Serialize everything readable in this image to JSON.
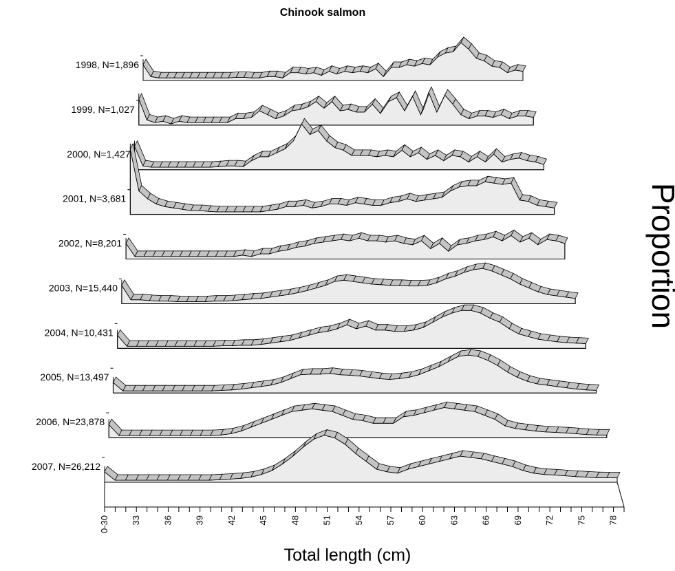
{
  "chart_data": {
    "type": "area",
    "title": "Chinook salmon",
    "xlabel": "Total length (cm)",
    "ylabel": "Proportion",
    "x_tick_labels": [
      "0-30",
      "33",
      "36",
      "39",
      "42",
      "45",
      "48",
      "51",
      "54",
      "57",
      "60",
      "63",
      "66",
      "69",
      "72",
      "75",
      "78"
    ],
    "x_bins": [
      "0-30",
      "31",
      "32",
      "33",
      "34",
      "35",
      "36",
      "37",
      "38",
      "39",
      "40",
      "41",
      "42",
      "43",
      "44",
      "45",
      "46",
      "47",
      "48",
      "49",
      "50",
      "51",
      "52",
      "53",
      "54",
      "55",
      "56",
      "57",
      "58",
      "59",
      "60",
      "61",
      "62",
      "63",
      "64",
      "65",
      "66",
      "67",
      "68",
      "69",
      "70",
      "71",
      "72",
      "73",
      "74",
      "75",
      "76",
      "77",
      "78",
      "79"
    ],
    "series": [
      {
        "name": "1998, N=1,896",
        "values": [
          0.6,
          0.15,
          0.1,
          0.1,
          0.1,
          0.1,
          0.1,
          0.1,
          0.1,
          0.1,
          0.1,
          0.1,
          0.12,
          0.12,
          0.1,
          0.1,
          0.15,
          0.15,
          0.1,
          0.3,
          0.3,
          0.25,
          0.3,
          0.2,
          0.35,
          0.25,
          0.35,
          0.3,
          0.35,
          0.3,
          0.45,
          0.15,
          0.5,
          0.5,
          0.6,
          0.55,
          0.65,
          0.6,
          0.9,
          1.05,
          1.1,
          1.45,
          1.2,
          0.85,
          0.75,
          0.55,
          0.5,
          0.3,
          0.4,
          0.35
        ]
      },
      {
        "name": "1999, N=1,027",
        "values": [
          1.0,
          0.2,
          0.1,
          0.15,
          0.05,
          0.15,
          0.1,
          0.1,
          0.1,
          0.1,
          0.1,
          0.1,
          0.25,
          0.25,
          0.3,
          0.55,
          0.4,
          0.25,
          0.35,
          0.55,
          0.6,
          0.7,
          0.9,
          0.65,
          0.9,
          0.55,
          0.6,
          0.5,
          0.5,
          0.8,
          0.45,
          0.9,
          1.05,
          0.55,
          1.1,
          0.4,
          1.25,
          0.5,
          1.15,
          0.8,
          0.4,
          0.25,
          0.35,
          0.35,
          0.3,
          0.4,
          0.25,
          0.35,
          0.35,
          0.3
        ]
      },
      {
        "name": "2000, N=1,427",
        "values": [
          0.9,
          0.15,
          0.1,
          0.1,
          0.1,
          0.1,
          0.1,
          0.1,
          0.1,
          0.1,
          0.12,
          0.15,
          0.15,
          0.12,
          0.35,
          0.5,
          0.5,
          0.65,
          0.8,
          1.1,
          1.75,
          1.35,
          1.5,
          1.1,
          0.85,
          0.75,
          0.55,
          0.55,
          0.55,
          0.5,
          0.55,
          0.5,
          0.75,
          0.5,
          0.65,
          0.4,
          0.55,
          0.35,
          0.55,
          0.5,
          0.3,
          0.5,
          0.3,
          0.6,
          0.3,
          0.4,
          0.45,
          0.35,
          0.3,
          0.2
        ]
      },
      {
        "name": "2001, N=3,681",
        "values": [
          2.5,
          0.9,
          0.6,
          0.4,
          0.3,
          0.25,
          0.2,
          0.15,
          0.15,
          0.12,
          0.1,
          0.1,
          0.1,
          0.1,
          0.1,
          0.1,
          0.15,
          0.2,
          0.3,
          0.3,
          0.35,
          0.25,
          0.3,
          0.4,
          0.4,
          0.35,
          0.45,
          0.4,
          0.35,
          0.35,
          0.45,
          0.5,
          0.6,
          0.5,
          0.55,
          0.6,
          0.65,
          0.9,
          1.05,
          1.1,
          1.1,
          1.25,
          1.2,
          1.15,
          1.2,
          0.55,
          0.5,
          0.35,
          0.3,
          0.25
        ]
      },
      {
        "name": "2002, N=8,201",
        "values": [
          0.6,
          0.1,
          0.1,
          0.1,
          0.1,
          0.1,
          0.1,
          0.1,
          0.1,
          0.1,
          0.1,
          0.1,
          0.1,
          0.15,
          0.1,
          0.2,
          0.2,
          0.3,
          0.35,
          0.45,
          0.5,
          0.6,
          0.65,
          0.7,
          0.75,
          0.7,
          0.8,
          0.7,
          0.7,
          0.65,
          0.7,
          0.6,
          0.55,
          0.7,
          0.4,
          0.6,
          0.3,
          0.55,
          0.6,
          0.7,
          0.75,
          0.85,
          0.7,
          0.9,
          0.65,
          0.8,
          0.55,
          0.75,
          0.7,
          0.6
        ]
      },
      {
        "name": "2003, N=15,440",
        "values": [
          0.7,
          0.15,
          0.15,
          0.12,
          0.1,
          0.1,
          0.08,
          0.08,
          0.08,
          0.08,
          0.1,
          0.1,
          0.12,
          0.15,
          0.18,
          0.2,
          0.25,
          0.3,
          0.35,
          0.42,
          0.5,
          0.6,
          0.7,
          0.85,
          0.9,
          0.85,
          0.8,
          0.75,
          0.73,
          0.7,
          0.7,
          0.68,
          0.68,
          0.7,
          0.8,
          0.95,
          1.05,
          1.2,
          1.3,
          1.35,
          1.25,
          1.1,
          0.95,
          0.75,
          0.6,
          0.45,
          0.35,
          0.3,
          0.25,
          0.2
        ]
      },
      {
        "name": "2004, N=10,431",
        "values": [
          0.5,
          0.08,
          0.08,
          0.08,
          0.08,
          0.08,
          0.08,
          0.08,
          0.08,
          0.08,
          0.08,
          0.1,
          0.1,
          0.12,
          0.12,
          0.15,
          0.2,
          0.25,
          0.3,
          0.4,
          0.5,
          0.6,
          0.65,
          0.75,
          0.9,
          0.75,
          0.85,
          0.7,
          0.7,
          0.65,
          0.65,
          0.7,
          0.8,
          1.0,
          1.2,
          1.35,
          1.45,
          1.45,
          1.35,
          1.15,
          1.0,
          0.75,
          0.55,
          0.45,
          0.35,
          0.3,
          0.25,
          0.22,
          0.2,
          0.18
        ]
      },
      {
        "name": "2005, N=13,497",
        "values": [
          0.4,
          0.08,
          0.08,
          0.08,
          0.08,
          0.08,
          0.08,
          0.08,
          0.08,
          0.08,
          0.08,
          0.1,
          0.12,
          0.15,
          0.2,
          0.25,
          0.3,
          0.4,
          0.55,
          0.7,
          0.72,
          0.72,
          0.75,
          0.7,
          0.68,
          0.65,
          0.6,
          0.55,
          0.52,
          0.55,
          0.6,
          0.7,
          0.85,
          1.0,
          1.2,
          1.4,
          1.45,
          1.4,
          1.25,
          1.05,
          0.8,
          0.6,
          0.45,
          0.35,
          0.3,
          0.25,
          0.2,
          0.15,
          0.12,
          0.1
        ]
      },
      {
        "name": "2006, N=23,878",
        "values": [
          0.5,
          0.08,
          0.08,
          0.08,
          0.08,
          0.08,
          0.08,
          0.08,
          0.08,
          0.08,
          0.08,
          0.1,
          0.15,
          0.25,
          0.4,
          0.55,
          0.7,
          0.85,
          1.0,
          1.05,
          1.1,
          1.05,
          1.0,
          0.85,
          0.7,
          0.65,
          0.55,
          0.55,
          0.55,
          0.8,
          0.85,
          0.95,
          1.05,
          1.15,
          1.1,
          1.05,
          1.0,
          0.85,
          0.7,
          0.45,
          0.35,
          0.3,
          0.25,
          0.22,
          0.2,
          0.18,
          0.15,
          0.12,
          0.1,
          0.1
        ]
      },
      {
        "name": "2007, N=26,212",
        "values": [
          0.4,
          0.08,
          0.08,
          0.08,
          0.08,
          0.08,
          0.08,
          0.08,
          0.08,
          0.08,
          0.08,
          0.1,
          0.12,
          0.15,
          0.2,
          0.3,
          0.45,
          0.7,
          1.0,
          1.35,
          1.65,
          1.8,
          1.7,
          1.45,
          1.1,
          0.8,
          0.5,
          0.4,
          0.35,
          0.5,
          0.6,
          0.7,
          0.8,
          0.9,
          1.0,
          0.95,
          0.9,
          0.8,
          0.7,
          0.6,
          0.45,
          0.35,
          0.3,
          0.28,
          0.25,
          0.22,
          0.2,
          0.18,
          0.17,
          0.17
        ]
      }
    ]
  }
}
